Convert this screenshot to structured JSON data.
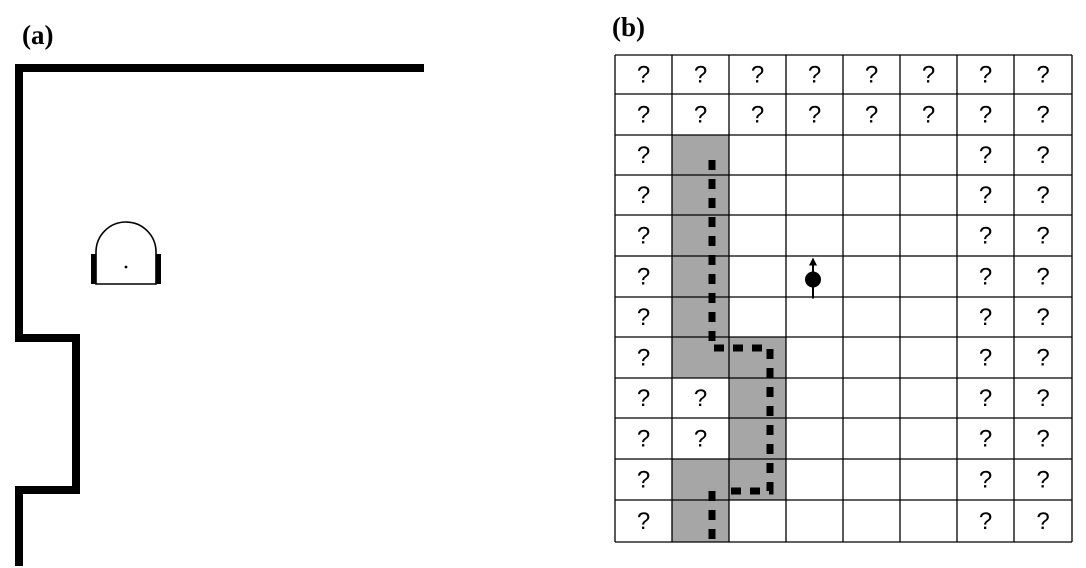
{
  "panel_a": {
    "label": "(a)"
  },
  "panel_b": {
    "label": "(b)",
    "unknown_symbol": "?",
    "rows": 12,
    "cols": 8,
    "grid": [
      [
        "?",
        "?",
        "?",
        "?",
        "?",
        "?",
        "?",
        "?"
      ],
      [
        "?",
        "?",
        "?",
        "?",
        "?",
        "?",
        "?",
        "?"
      ],
      [
        "?",
        "#",
        "",
        "",
        "",
        "",
        "?",
        "?"
      ],
      [
        "?",
        "#",
        "",
        "",
        "",
        "",
        "?",
        "?"
      ],
      [
        "?",
        "#",
        "",
        "",
        "",
        "",
        "?",
        "?"
      ],
      [
        "?",
        "#",
        "",
        "",
        "",
        "",
        "?",
        "?"
      ],
      [
        "?",
        "#",
        "",
        "",
        "",
        "",
        "?",
        "?"
      ],
      [
        "?",
        "#",
        "#",
        "",
        "",
        "",
        "?",
        "?"
      ],
      [
        "?",
        "?",
        "#",
        "",
        "",
        "",
        "?",
        "?"
      ],
      [
        "?",
        "?",
        "#",
        "",
        "",
        "",
        "?",
        "?"
      ],
      [
        "?",
        "#",
        "#",
        "",
        "",
        "",
        "?",
        "?"
      ],
      [
        "?",
        "#",
        "",
        "",
        "",
        "",
        "?",
        "?"
      ]
    ],
    "robot_cell": {
      "row": 5,
      "col": 3
    },
    "colors": {
      "occupied": "#a6a6a6",
      "line": "#000000",
      "background": "#ffffff"
    }
  }
}
